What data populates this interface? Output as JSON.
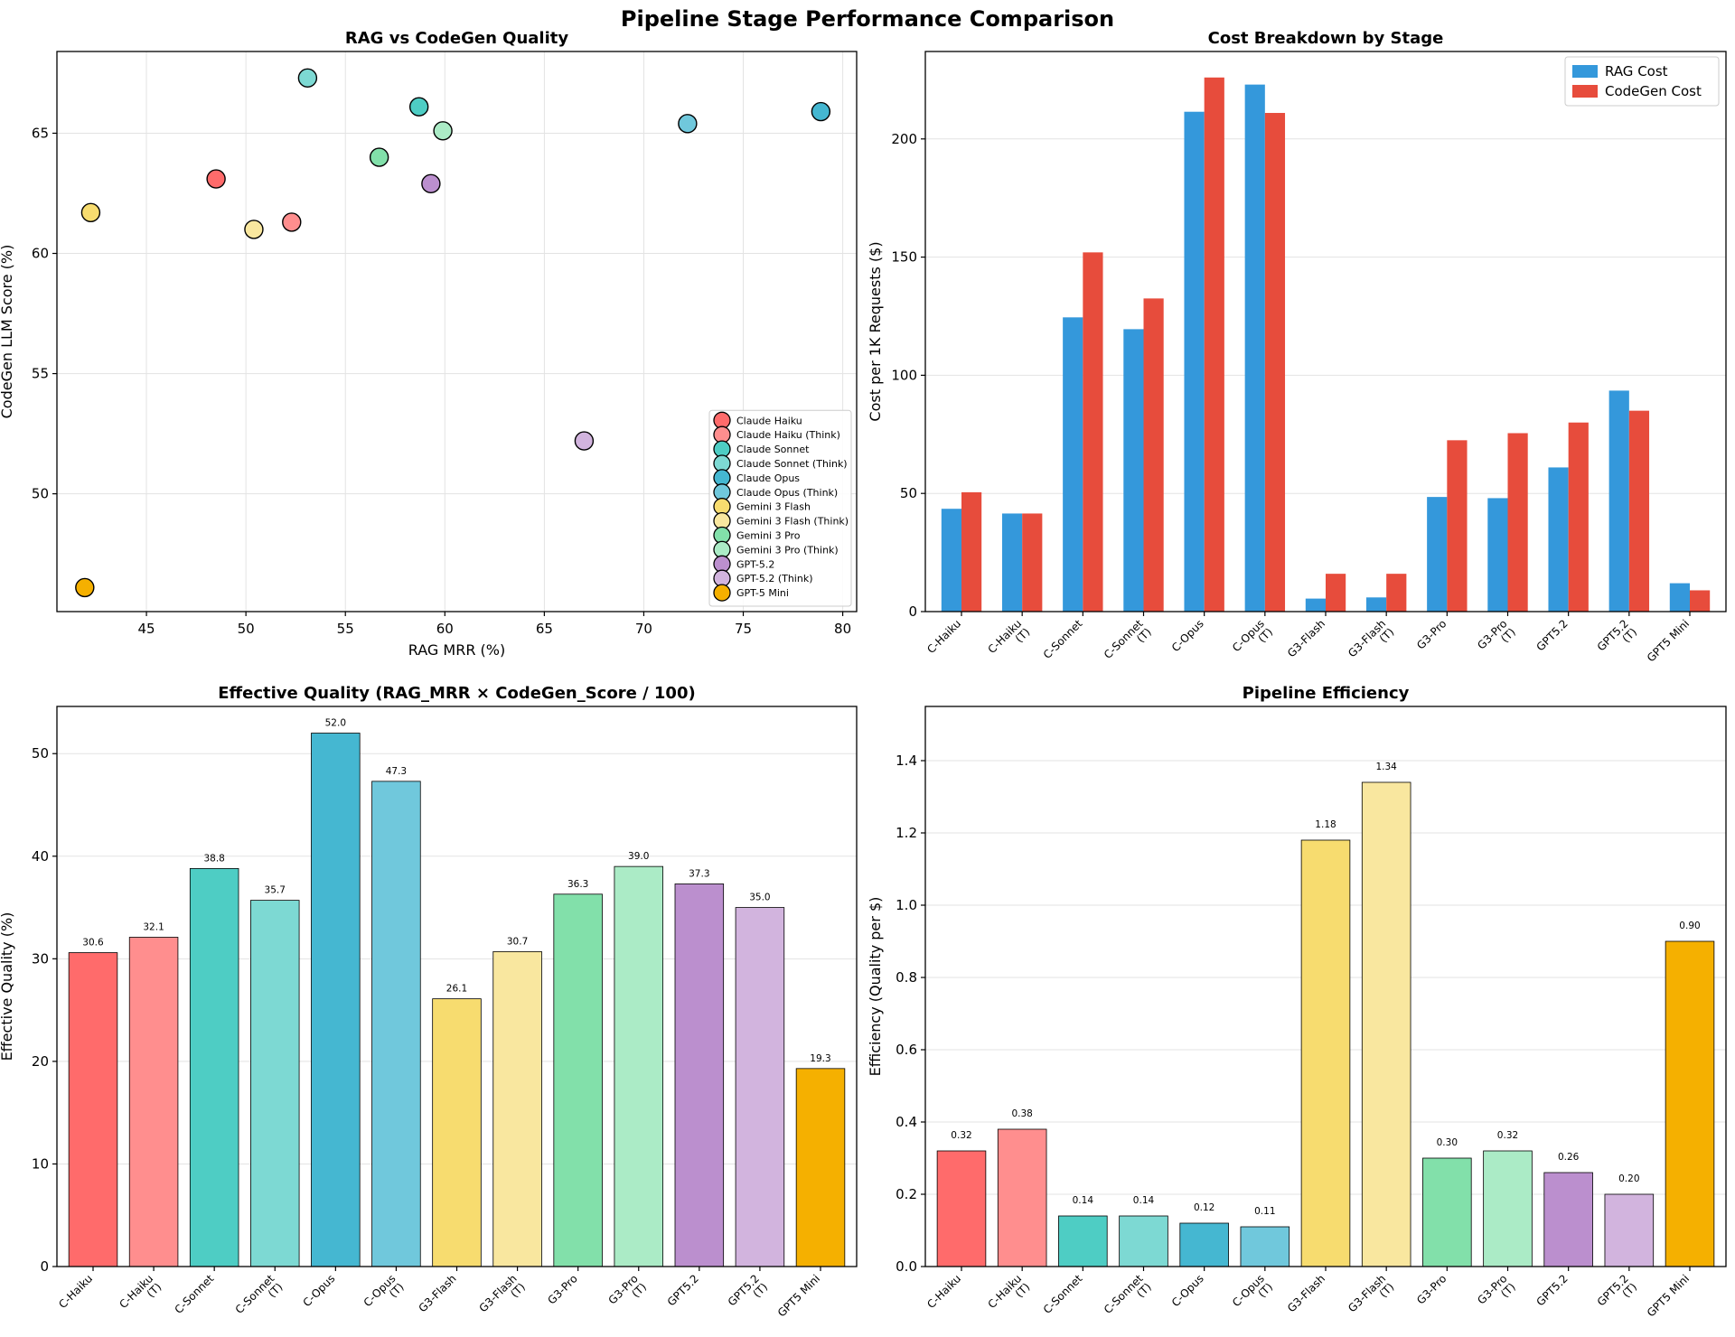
{
  "suptitle": "Pipeline Stage Performance Comparison",
  "colors": {
    "rag_cost": "#3498db",
    "codegen_cost": "#e74c3c"
  },
  "chart_data": [
    {
      "id": "scatter",
      "type": "scatter",
      "title": "RAG vs CodeGen Quality",
      "xlabel": "RAG MRR (%)",
      "ylabel": "CodeGen LLM Score (%)",
      "xlim": [
        40.5,
        80.7
      ],
      "ylim": [
        45.1,
        68.4
      ],
      "xticks": [
        45,
        50,
        55,
        60,
        65,
        70,
        75,
        80
      ],
      "yticks": [
        50,
        55,
        60,
        65
      ],
      "grid": true,
      "legend_position": "lower-right",
      "points": [
        {
          "name": "Claude Haiku",
          "x": 48.5,
          "y": 63.1,
          "color": "#ff6b6b"
        },
        {
          "name": "Claude Haiku (Think)",
          "x": 52.3,
          "y": 61.3,
          "color": "#ff8e8e"
        },
        {
          "name": "Claude Sonnet",
          "x": 58.7,
          "y": 66.1,
          "color": "#4ecdc4"
        },
        {
          "name": "Claude Sonnet (Think)",
          "x": 53.1,
          "y": 67.3,
          "color": "#7dd9d3"
        },
        {
          "name": "Claude Opus",
          "x": 78.9,
          "y": 65.9,
          "color": "#45b7d1"
        },
        {
          "name": "Claude Opus (Think)",
          "x": 72.2,
          "y": 65.4,
          "color": "#70c8dc"
        },
        {
          "name": "Gemini 3 Flash",
          "x": 42.2,
          "y": 61.7,
          "color": "#f7dc6f"
        },
        {
          "name": "Gemini 3 Flash (Think)",
          "x": 50.4,
          "y": 61.0,
          "color": "#f9e79f"
        },
        {
          "name": "Gemini 3 Pro",
          "x": 56.7,
          "y": 64.0,
          "color": "#82e0aa"
        },
        {
          "name": "Gemini 3 Pro (Think)",
          "x": 59.9,
          "y": 65.1,
          "color": "#abebc6"
        },
        {
          "name": "GPT-5.2",
          "x": 59.3,
          "y": 62.9,
          "color": "#bb8fce"
        },
        {
          "name": "GPT-5.2 (Think)",
          "x": 67.0,
          "y": 52.2,
          "color": "#d2b4de"
        },
        {
          "name": "GPT-5 Mini",
          "x": 41.9,
          "y": 46.1,
          "color": "#f5b000"
        }
      ]
    },
    {
      "id": "cost",
      "type": "bar",
      "title": "Cost Breakdown by Stage",
      "xlabel": "",
      "ylabel": "Cost per 1K Requests ($)",
      "ylim": [
        0,
        237
      ],
      "yticks": [
        0,
        50,
        100,
        150,
        200
      ],
      "grid": true,
      "legend_position": "top-right",
      "categories": [
        "C-Haiku",
        "C-Haiku\n(T)",
        "C-Sonnet",
        "C-Sonnet\n(T)",
        "C-Opus",
        "C-Opus\n(T)",
        "G3-Flash",
        "G3-Flash\n(T)",
        "G3-Pro",
        "G3-Pro\n(T)",
        "GPT5.2",
        "GPT5.2\n(T)",
        "GPT5 Mini"
      ],
      "series": [
        {
          "name": "RAG Cost",
          "values": [
            43.5,
            41.5,
            124.5,
            119.5,
            211.5,
            223.0,
            5.5,
            6.0,
            48.5,
            48.0,
            61.0,
            93.5,
            12.0
          ]
        },
        {
          "name": "CodeGen Cost",
          "values": [
            50.5,
            41.5,
            152.0,
            132.5,
            226.0,
            211.0,
            16.0,
            16.0,
            72.5,
            75.5,
            80.0,
            85.0,
            9.0
          ]
        }
      ]
    },
    {
      "id": "effq",
      "type": "bar",
      "title": "Effective Quality (RAG_MRR × CodeGen_Score / 100)",
      "xlabel": "",
      "ylabel": "Effective Quality (%)",
      "ylim": [
        0,
        54.6
      ],
      "yticks": [
        0,
        10,
        20,
        30,
        40,
        50
      ],
      "grid": true,
      "categories": [
        "C-Haiku",
        "C-Haiku\n(T)",
        "C-Sonnet",
        "C-Sonnet\n(T)",
        "C-Opus",
        "C-Opus\n(T)",
        "G3-Flash",
        "G3-Flash\n(T)",
        "G3-Pro",
        "G3-Pro\n(T)",
        "GPT5.2",
        "GPT5.2\n(T)",
        "GPT5 Mini"
      ],
      "values": [
        30.6,
        32.1,
        38.8,
        35.7,
        52.0,
        47.3,
        26.1,
        30.7,
        36.3,
        39.0,
        37.3,
        35.0,
        19.3
      ],
      "labels": [
        "30.6",
        "32.1",
        "38.8",
        "35.7",
        "52.0",
        "47.3",
        "26.1",
        "30.7",
        "36.3",
        "39.0",
        "37.3",
        "35.0",
        "19.3"
      ]
    },
    {
      "id": "eff",
      "type": "bar",
      "title": "Pipeline Efficiency",
      "xlabel": "",
      "ylabel": "Efficiency (Quality per $)",
      "ylim": [
        0,
        1.55
      ],
      "yticks": [
        0.0,
        0.2,
        0.4,
        0.6,
        0.8,
        1.0,
        1.2,
        1.4
      ],
      "yticklabels": [
        "0.0",
        "0.2",
        "0.4",
        "0.6",
        "0.8",
        "1.0",
        "1.2",
        "1.4"
      ],
      "grid": true,
      "categories": [
        "C-Haiku",
        "C-Haiku\n(T)",
        "C-Sonnet",
        "C-Sonnet\n(T)",
        "C-Opus",
        "C-Opus\n(T)",
        "G3-Flash",
        "G3-Flash\n(T)",
        "G3-Pro",
        "G3-Pro\n(T)",
        "GPT5.2",
        "GPT5.2\n(T)",
        "GPT5 Mini"
      ],
      "values": [
        0.32,
        0.38,
        0.14,
        0.14,
        0.12,
        0.11,
        1.18,
        1.34,
        0.3,
        0.32,
        0.26,
        0.2,
        0.9
      ],
      "labels": [
        "0.32",
        "0.38",
        "0.14",
        "0.14",
        "0.12",
        "0.11",
        "1.18",
        "1.34",
        "0.30",
        "0.32",
        "0.26",
        "0.20",
        "0.90"
      ]
    }
  ],
  "bar_colors": [
    "#ff6b6b",
    "#ff8e8e",
    "#4ecdc4",
    "#7dd9d3",
    "#45b7d1",
    "#70c8dc",
    "#f7dc6f",
    "#f9e79f",
    "#82e0aa",
    "#abebc6",
    "#bb8fce",
    "#d2b4de",
    "#f5b000"
  ]
}
